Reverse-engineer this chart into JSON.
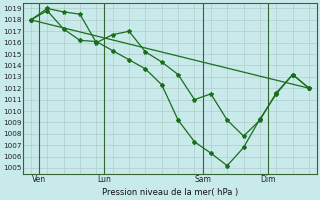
{
  "background_color": "#c8eaea",
  "grid_major_color": "#b0cccc",
  "grid_minor_color": "#d0e8e8",
  "line_color": "#1a6e1a",
  "ylim": [
    1004.5,
    1019.5
  ],
  "yticks": [
    1005,
    1006,
    1007,
    1008,
    1009,
    1010,
    1011,
    1012,
    1013,
    1014,
    1015,
    1016,
    1017,
    1018,
    1019
  ],
  "xlabel": "Pression niveau de la mer( hPa )",
  "day_labels": [
    "Ven",
    "Lun",
    "Sam",
    "Dim"
  ],
  "day_positions": [
    0.5,
    4.5,
    10.5,
    14.5
  ],
  "xlim": [
    -0.5,
    17.5
  ],
  "series1_x": [
    0,
    1,
    2,
    3,
    4,
    5,
    6,
    7,
    8,
    9,
    10,
    11,
    12,
    13,
    14,
    15,
    16,
    17
  ],
  "series1_y": [
    1018.0,
    1019.0,
    1018.7,
    1018.5,
    1016.0,
    1016.7,
    1017.0,
    1015.2,
    1014.3,
    1013.2,
    1011.0,
    1011.5,
    1009.2,
    1007.8,
    1009.2,
    1011.6,
    1013.2,
    1012.0
  ],
  "series2_x": [
    0,
    1,
    2,
    3,
    4,
    5,
    6,
    7,
    8,
    9,
    10,
    11,
    12,
    13,
    14,
    15,
    16,
    17
  ],
  "series2_y": [
    1018.0,
    1018.8,
    1017.2,
    1016.2,
    1016.1,
    1015.3,
    1014.5,
    1013.7,
    1012.3,
    1009.2,
    1007.3,
    1006.3,
    1005.2,
    1006.8,
    1009.3,
    1011.5,
    1013.2,
    1012.0
  ],
  "series3_x": [
    0,
    17
  ],
  "series3_y": [
    1018.0,
    1012.0
  ]
}
